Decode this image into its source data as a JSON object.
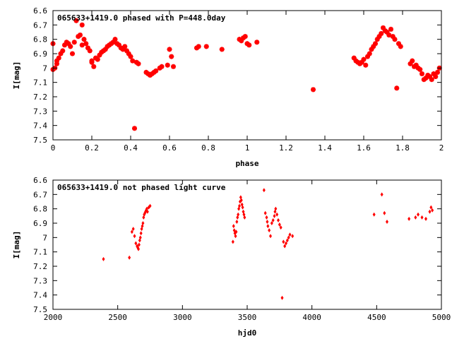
{
  "chart_data": [
    {
      "type": "scatter",
      "title": "065633+1419.0 phased with P=448.0day",
      "xlabel": "phase",
      "ylabel": "I[mag]",
      "xlim": [
        0,
        2
      ],
      "ylim": [
        6.6,
        7.5
      ],
      "y_inverted": true,
      "xticks": [
        "0",
        "0.2",
        "0.4",
        "0.6",
        "0.8",
        "1",
        "1.2",
        "1.4",
        "1.6",
        "1.8",
        "2"
      ],
      "yticks": [
        "6.6",
        "6.7",
        "6.8",
        "6.9",
        "7",
        "7.1",
        "7.2",
        "7.3",
        "7.4",
        "7.5"
      ],
      "grid": false,
      "marker_color": "#ff0000",
      "series": [
        {
          "x": [
            0.0,
            0.0,
            0.01,
            0.02,
            0.02,
            0.03,
            0.04,
            0.05,
            0.06,
            0.07,
            0.08,
            0.09,
            0.1,
            0.11,
            0.12,
            0.13,
            0.14,
            0.15,
            0.15,
            0.16,
            0.17,
            0.18,
            0.19,
            0.2,
            0.2,
            0.21,
            0.22,
            0.23,
            0.24,
            0.25,
            0.26,
            0.27,
            0.28,
            0.29,
            0.3,
            0.31,
            0.32,
            0.33,
            0.34,
            0.35,
            0.36,
            0.37,
            0.38,
            0.39,
            0.4,
            0.41,
            0.42,
            0.43,
            0.44,
            0.48,
            0.49,
            0.5,
            0.51,
            0.52,
            0.53,
            0.55,
            0.56,
            0.59,
            0.6,
            0.61,
            0.62,
            0.74,
            0.75,
            0.79,
            0.87,
            0.96,
            0.97,
            0.98,
            0.99,
            1.0,
            1.01,
            1.05,
            1.34,
            1.55,
            1.56,
            1.57,
            1.58,
            1.59,
            1.6,
            1.61,
            1.62,
            1.63,
            1.64,
            1.65,
            1.66,
            1.67,
            1.68,
            1.69,
            1.7,
            1.71,
            1.72,
            1.73,
            1.74,
            1.75,
            1.76,
            1.77,
            1.78,
            1.79,
            1.84,
            1.85,
            1.86,
            1.87,
            1.88,
            1.89,
            1.9,
            1.91,
            1.92,
            1.93,
            1.94,
            1.95,
            1.96,
            1.97,
            1.98,
            1.99
          ],
          "y": [
            6.83,
            7.01,
            7.0,
            6.97,
            6.95,
            6.93,
            6.9,
            6.88,
            6.84,
            6.82,
            6.83,
            6.85,
            6.9,
            6.82,
            6.67,
            6.78,
            6.77,
            6.7,
            6.84,
            6.8,
            6.83,
            6.86,
            6.88,
            6.95,
            6.96,
            6.99,
            6.93,
            6.94,
            6.91,
            6.89,
            6.88,
            6.87,
            6.85,
            6.84,
            6.83,
            6.82,
            6.8,
            6.83,
            6.84,
            6.86,
            6.87,
            6.85,
            6.88,
            6.9,
            6.92,
            6.95,
            7.42,
            6.96,
            6.97,
            7.03,
            7.04,
            7.05,
            7.04,
            7.03,
            7.02,
            7.0,
            6.99,
            6.98,
            6.87,
            6.92,
            6.99,
            6.86,
            6.85,
            6.85,
            6.87,
            6.8,
            6.81,
            6.79,
            6.78,
            6.83,
            6.84,
            6.82,
            7.15,
            6.93,
            6.95,
            6.96,
            6.97,
            6.96,
            6.94,
            6.98,
            6.92,
            6.9,
            6.87,
            6.85,
            6.83,
            6.8,
            6.78,
            6.76,
            6.72,
            6.74,
            6.75,
            6.77,
            6.73,
            6.78,
            6.8,
            7.14,
            6.83,
            6.85,
            6.97,
            6.95,
            6.99,
            6.98,
            7.0,
            7.01,
            7.04,
            7.08,
            7.07,
            7.05,
            7.06,
            7.08,
            7.04,
            7.06,
            7.03,
            7.0
          ]
        }
      ]
    },
    {
      "type": "scatter",
      "title": "065633+1419.0 not phased light curve",
      "xlabel": "hjd0",
      "ylabel": "I[mag]",
      "xlim": [
        2000,
        5000
      ],
      "ylim": [
        6.6,
        7.5
      ],
      "y_inverted": true,
      "xticks": [
        "2000",
        "2500",
        "3000",
        "3500",
        "4000",
        "4500",
        "5000"
      ],
      "yticks": [
        "6.6",
        "6.7",
        "6.8",
        "6.9",
        "7",
        "7.1",
        "7.2",
        "7.3",
        "7.4",
        "7.5"
      ],
      "grid": false,
      "marker_color": "#ff0000",
      "series": [
        {
          "x": [
            2390,
            2590,
            2610,
            2620,
            2630,
            2640,
            2650,
            2655,
            2660,
            2665,
            2670,
            2675,
            2680,
            2685,
            2690,
            2695,
            2700,
            2705,
            2710,
            2715,
            2720,
            2725,
            2730,
            2740,
            2750,
            3390,
            3395,
            3400,
            3405,
            3410,
            3415,
            3420,
            3425,
            3430,
            3435,
            3440,
            3445,
            3450,
            3455,
            3460,
            3465,
            3470,
            3475,
            3480,
            3630,
            3640,
            3650,
            3655,
            3660,
            3670,
            3680,
            3690,
            3700,
            3710,
            3715,
            3720,
            3730,
            3740,
            3750,
            3760,
            3770,
            3780,
            3790,
            3800,
            3810,
            3820,
            3830,
            3850,
            4480,
            4540,
            4560,
            4580,
            4750,
            4800,
            4820,
            4850,
            4880,
            4910,
            4920,
            4930
          ],
          "y": [
            7.15,
            7.14,
            6.96,
            6.94,
            6.99,
            7.04,
            7.06,
            7.07,
            7.08,
            7.05,
            7.02,
            7.0,
            6.97,
            6.94,
            6.92,
            6.9,
            6.86,
            6.84,
            6.83,
            6.82,
            6.81,
            6.8,
            6.82,
            6.79,
            6.78,
            7.03,
            6.92,
            6.95,
            6.97,
            6.99,
            6.96,
            6.89,
            6.86,
            6.84,
            6.8,
            6.78,
            6.75,
            6.72,
            6.74,
            6.77,
            6.79,
            6.82,
            6.84,
            6.86,
            6.67,
            6.83,
            6.86,
            6.89,
            6.92,
            6.95,
            6.99,
            6.9,
            6.88,
            6.85,
            6.82,
            6.8,
            6.84,
            6.88,
            6.91,
            6.93,
            7.42,
            7.03,
            7.06,
            7.04,
            7.02,
            7.0,
            6.98,
            6.99,
            6.84,
            6.7,
            6.83,
            6.89,
            6.87,
            6.86,
            6.84,
            6.86,
            6.87,
            6.82,
            6.79,
            6.81
          ]
        }
      ]
    }
  ]
}
